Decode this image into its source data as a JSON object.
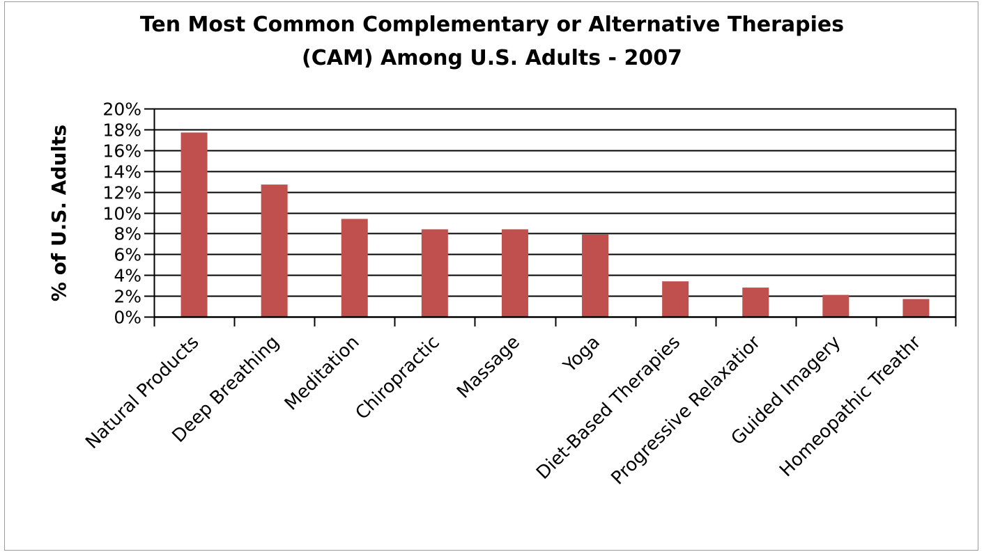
{
  "chart_data": {
    "type": "bar",
    "title": "Ten Most Common Complementary or Alternative Therapies (CAM) Among U.S. Adults - 2007",
    "title_lines": [
      "Ten Most Common Complementary or Alternative Therapies",
      "(CAM) Among U.S. Adults - 2007"
    ],
    "xlabel": "",
    "ylabel": "% of U.S. Adults",
    "categories": [
      "Natural Products",
      "Deep Breathing",
      "Meditation",
      "Chiropractic",
      "Massage",
      "Yoga",
      "Diet-Based Therapies",
      "Progressive Relaxation",
      "Guided Imagery",
      "Homeopathic Treatment"
    ],
    "category_labels_shown": [
      "Natural Products",
      "Deep Breathing",
      "Meditation",
      "Chiropractic",
      "Massage",
      "Yoga",
      "Diet-Based Therapies",
      "Progressive Relaxatior",
      "Guided Imagery",
      "Homeopathic Treathr"
    ],
    "values": [
      17.7,
      12.7,
      9.4,
      8.4,
      8.4,
      7.9,
      3.4,
      2.8,
      2.1,
      1.7
    ],
    "ylim": [
      0,
      20
    ],
    "yticks": [
      0,
      2,
      4,
      6,
      8,
      10,
      12,
      14,
      16,
      18,
      20
    ],
    "ytick_labels": [
      "0%",
      "2%",
      "4%",
      "6%",
      "8%",
      "10%",
      "12%",
      "14%",
      "16%",
      "18%",
      "20%"
    ],
    "grid": true,
    "legend": "none",
    "bar_color": "#c0504d"
  }
}
